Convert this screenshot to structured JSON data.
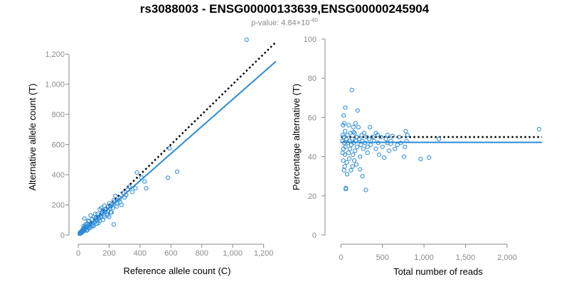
{
  "title": "rs3088003 - ENSG00000133639,ENSG00000245904",
  "subtitle": {
    "prefix": "p-value: 4.84×10",
    "exponent": "-40"
  },
  "colors": {
    "points": "#2a8ad6",
    "fit_line": "#2a8ad6",
    "reference_line": "#000000",
    "axis": "#8a8a8a"
  },
  "chart_data": [
    {
      "type": "scatter",
      "xlabel": "Reference allele count (C)",
      "ylabel": "Alternative allele count (T)",
      "xlim": [
        0,
        1280
      ],
      "ylim": [
        0,
        1300
      ],
      "xticks": [
        0,
        200,
        400,
        600,
        800,
        1000,
        1200
      ],
      "xtick_labels": [
        "0",
        "200",
        "400",
        "600",
        "800",
        "1,000",
        "1,200"
      ],
      "yticks": [
        0,
        200,
        400,
        600,
        800,
        1000,
        1200
      ],
      "ytick_labels": [
        "0",
        "200",
        "400",
        "600",
        "800",
        "1,000",
        "1,200"
      ],
      "reference_line": {
        "style": "dotted",
        "slope": 1,
        "intercept": 0
      },
      "fit_line": {
        "style": "solid",
        "slope": 0.9,
        "intercept": 0
      },
      "points": [
        [
          1090,
          1295
        ],
        [
          640,
          420
        ],
        [
          590,
          575
        ],
        [
          580,
          380
        ],
        [
          440,
          310
        ],
        [
          430,
          355
        ],
        [
          410,
          380
        ],
        [
          380,
          415
        ],
        [
          370,
          310
        ],
        [
          350,
          285
        ],
        [
          330,
          320
        ],
        [
          320,
          300
        ],
        [
          310,
          265
        ],
        [
          300,
          250
        ],
        [
          290,
          280
        ],
        [
          280,
          200
        ],
        [
          270,
          245
        ],
        [
          260,
          230
        ],
        [
          250,
          210
        ],
        [
          240,
          260
        ],
        [
          235,
          220
        ],
        [
          230,
          70
        ],
        [
          225,
          180
        ],
        [
          220,
          200
        ],
        [
          215,
          150
        ],
        [
          210,
          190
        ],
        [
          205,
          175
        ],
        [
          200,
          210
        ],
        [
          195,
          160
        ],
        [
          190,
          185
        ],
        [
          185,
          140
        ],
        [
          180,
          170
        ],
        [
          175,
          155
        ],
        [
          170,
          195
        ],
        [
          165,
          130
        ],
        [
          160,
          165
        ],
        [
          155,
          150
        ],
        [
          150,
          140
        ],
        [
          145,
          125
        ],
        [
          140,
          170
        ],
        [
          135,
          110
        ],
        [
          130,
          120
        ],
        [
          125,
          140
        ],
        [
          120,
          95
        ],
        [
          115,
          115
        ],
        [
          110,
          100
        ],
        [
          105,
          85
        ],
        [
          100,
          120
        ],
        [
          95,
          70
        ],
        [
          90,
          105
        ],
        [
          85,
          80
        ],
        [
          80,
          130
        ],
        [
          75,
          65
        ],
        [
          70,
          90
        ],
        [
          65,
          55
        ],
        [
          60,
          75
        ],
        [
          55,
          60
        ],
        [
          50,
          45
        ],
        [
          48,
          70
        ],
        [
          45,
          40
        ],
        [
          42,
          55
        ],
        [
          40,
          30
        ],
        [
          38,
          45
        ],
        [
          35,
          35
        ],
        [
          33,
          25
        ],
        [
          30,
          40
        ],
        [
          28,
          20
        ],
        [
          25,
          30
        ],
        [
          22,
          25
        ],
        [
          20,
          15
        ],
        [
          18,
          20
        ],
        [
          15,
          10
        ],
        [
          12,
          18
        ],
        [
          10,
          8
        ],
        [
          40,
          110
        ],
        [
          60,
          35
        ],
        [
          90,
          60
        ],
        [
          110,
          140
        ],
        [
          130,
          80
        ],
        [
          150,
          180
        ],
        [
          170,
          120
        ],
        [
          190,
          130
        ],
        [
          210,
          150
        ],
        [
          230,
          230
        ],
        [
          250,
          190
        ],
        [
          270,
          220
        ],
        [
          200,
          120
        ],
        [
          160,
          100
        ],
        [
          140,
          95
        ],
        [
          120,
          75
        ],
        [
          100,
          60
        ],
        [
          80,
          50
        ],
        [
          70,
          45
        ],
        [
          65,
          95
        ],
        [
          55,
          30
        ],
        [
          35,
          60
        ]
      ]
    },
    {
      "type": "scatter",
      "xlabel": "Total number of reads",
      "ylabel": "Percentage alternative (T)",
      "xlim": [
        -80,
        2420
      ],
      "ylim": [
        0,
        100
      ],
      "xticks": [
        0,
        500,
        1000,
        1500,
        2000
      ],
      "xtick_labels": [
        "0",
        "500",
        "1,000",
        "1,500",
        "2,000"
      ],
      "yticks": [
        0,
        20,
        40,
        60,
        80,
        100
      ],
      "ytick_labels": [
        "0",
        "20",
        "40",
        "60",
        "80",
        "100"
      ],
      "reference_line": {
        "style": "dotted",
        "y": 50
      },
      "fit_line": {
        "style": "solid",
        "y": 47.3
      },
      "points": [
        [
          2385,
          54
        ],
        [
          1180,
          49
        ],
        [
          1060,
          39.5
        ],
        [
          960,
          38.8
        ],
        [
          800,
          51
        ],
        [
          790,
          48
        ],
        [
          780,
          53
        ],
        [
          770,
          45
        ],
        [
          760,
          40
        ],
        [
          720,
          47
        ],
        [
          700,
          50
        ],
        [
          680,
          46
        ],
        [
          650,
          44
        ],
        [
          620,
          50.5
        ],
        [
          600,
          48
        ],
        [
          580,
          43
        ],
        [
          560,
          47
        ],
        [
          540,
          49
        ],
        [
          520,
          39.5
        ],
        [
          500,
          45
        ],
        [
          480,
          50
        ],
        [
          460,
          41
        ],
        [
          450,
          47
        ],
        [
          440,
          51
        ],
        [
          420,
          44
        ],
        [
          400,
          48
        ],
        [
          380,
          50
        ],
        [
          360,
          46
        ],
        [
          350,
          55
        ],
        [
          340,
          49
        ],
        [
          320,
          45
        ],
        [
          310,
          50
        ],
        [
          300,
          23
        ],
        [
          290,
          47
        ],
        [
          280,
          52
        ],
        [
          270,
          44
        ],
        [
          260,
          48
        ],
        [
          250,
          51
        ],
        [
          240,
          46
        ],
        [
          230,
          40
        ],
        [
          220,
          49
        ],
        [
          210,
          55
        ],
        [
          200,
          63.5
        ],
        [
          195,
          45
        ],
        [
          190,
          50
        ],
        [
          185,
          36
        ],
        [
          180,
          48
        ],
        [
          170,
          43
        ],
        [
          165,
          52
        ],
        [
          160,
          38
        ],
        [
          155,
          47
        ],
        [
          150,
          55
        ],
        [
          145,
          41
        ],
        [
          140,
          35
        ],
        [
          135,
          49
        ],
        [
          130,
          74
        ],
        [
          125,
          46
        ],
        [
          120,
          33
        ],
        [
          115,
          52
        ],
        [
          110,
          44
        ],
        [
          105,
          48
        ],
        [
          100,
          39
        ],
        [
          95,
          56
        ],
        [
          90,
          42
        ],
        [
          85,
          47
        ],
        [
          80,
          51
        ],
        [
          75,
          31
        ],
        [
          70,
          37
        ],
        [
          65,
          49
        ],
        [
          60,
          24
        ],
        [
          58,
          23.5
        ],
        [
          55,
          45
        ],
        [
          52,
          65
        ],
        [
          50,
          53
        ],
        [
          48,
          41
        ],
        [
          45,
          35
        ],
        [
          42,
          57
        ],
        [
          40,
          47
        ],
        [
          38,
          33
        ],
        [
          35,
          50
        ],
        [
          32,
          61
        ],
        [
          30,
          44
        ],
        [
          28,
          38
        ],
        [
          25,
          56
        ],
        [
          22,
          51
        ],
        [
          20,
          42
        ],
        [
          18,
          48
        ],
        [
          260,
          30
        ],
        [
          230,
          33.5
        ],
        [
          320,
          42
        ],
        [
          420,
          52
        ],
        [
          560,
          51
        ],
        [
          600,
          46.5
        ],
        [
          150,
          52.5
        ],
        [
          175,
          57
        ]
      ]
    }
  ]
}
